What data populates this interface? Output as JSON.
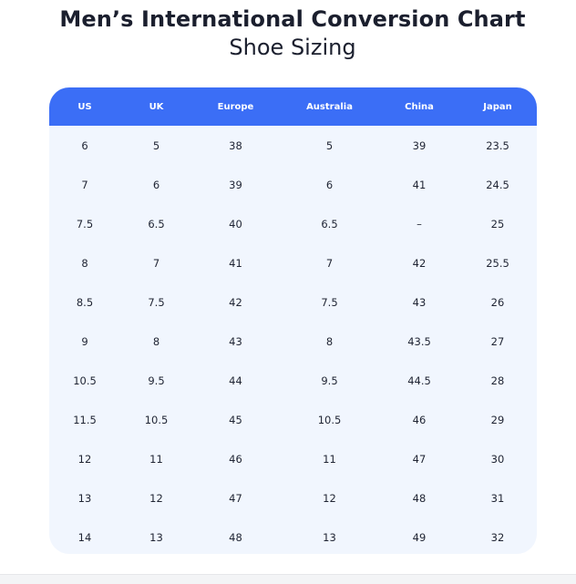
{
  "header": {
    "title": "Men’s International Conversion Chart",
    "subtitle": "Shoe Sizing"
  },
  "chart_data": {
    "type": "table",
    "columns": [
      "US",
      "UK",
      "Europe",
      "Australia",
      "China",
      "Japan"
    ],
    "rows": [
      [
        "6",
        "5",
        "38",
        "5",
        "39",
        "23.5"
      ],
      [
        "7",
        "6",
        "39",
        "6",
        "41",
        "24.5"
      ],
      [
        "7.5",
        "6.5",
        "40",
        "6.5",
        "–",
        "25"
      ],
      [
        "8",
        "7",
        "41",
        "7",
        "42",
        "25.5"
      ],
      [
        "8.5",
        "7.5",
        "42",
        "7.5",
        "43",
        "26"
      ],
      [
        "9",
        "8",
        "43",
        "8",
        "43.5",
        "27"
      ],
      [
        "10.5",
        "9.5",
        "44",
        "9.5",
        "44.5",
        "28"
      ],
      [
        "11.5",
        "10.5",
        "45",
        "10.5",
        "46",
        "29"
      ],
      [
        "12",
        "11",
        "46",
        "11",
        "47",
        "30"
      ],
      [
        "13",
        "12",
        "47",
        "12",
        "48",
        "31"
      ],
      [
        "14",
        "13",
        "48",
        "13",
        "49",
        "32"
      ]
    ]
  },
  "colors": {
    "header_bg": "#3b6ef6",
    "table_bg": "#f1f6fe",
    "text": "#1f2433"
  }
}
